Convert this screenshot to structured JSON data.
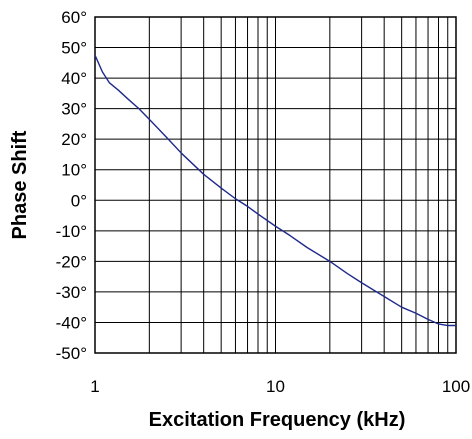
{
  "chart_data": {
    "type": "line",
    "xlabel": "Excitation Frequency (kHz)",
    "ylabel": "Phase Shift",
    "x_scale": "log",
    "xlim": [
      1,
      100
    ],
    "ylim": [
      -50,
      60
    ],
    "x_tick_labels": [
      {
        "value": 1,
        "label": "1"
      },
      {
        "value": 10,
        "label": "10"
      },
      {
        "value": 100,
        "label": "100"
      }
    ],
    "y_tick_labels": [
      {
        "value": 60,
        "label": "60°"
      },
      {
        "value": 50,
        "label": "50°"
      },
      {
        "value": 40,
        "label": "40°"
      },
      {
        "value": 30,
        "label": "30°"
      },
      {
        "value": 20,
        "label": "20°"
      },
      {
        "value": 10,
        "label": "10°"
      },
      {
        "value": 0,
        "label": "0°"
      },
      {
        "value": -10,
        "label": "-10°"
      },
      {
        "value": -20,
        "label": "-20°"
      },
      {
        "value": -30,
        "label": "-30°"
      },
      {
        "value": -40,
        "label": "-40°"
      },
      {
        "value": -50,
        "label": "-50°"
      }
    ],
    "grid": true,
    "line_color": "#1f2a8c",
    "series": [
      {
        "x": [
          1,
          1.1,
          1.2,
          1.35,
          1.5,
          1.75,
          2,
          2.5,
          3,
          4,
          5,
          6,
          7,
          8,
          10,
          12,
          15,
          20,
          25,
          30,
          40,
          50,
          60,
          70,
          80,
          90,
          100
        ],
        "values": [
          47.5,
          42,
          38.5,
          36,
          33.5,
          30,
          26.5,
          20.5,
          15.5,
          8.5,
          4,
          0.5,
          -2,
          -4.5,
          -8.5,
          -11.5,
          -15.5,
          -20,
          -24,
          -27,
          -31.5,
          -35,
          -37,
          -39,
          -40.5,
          -41,
          -41
        ]
      }
    ]
  }
}
